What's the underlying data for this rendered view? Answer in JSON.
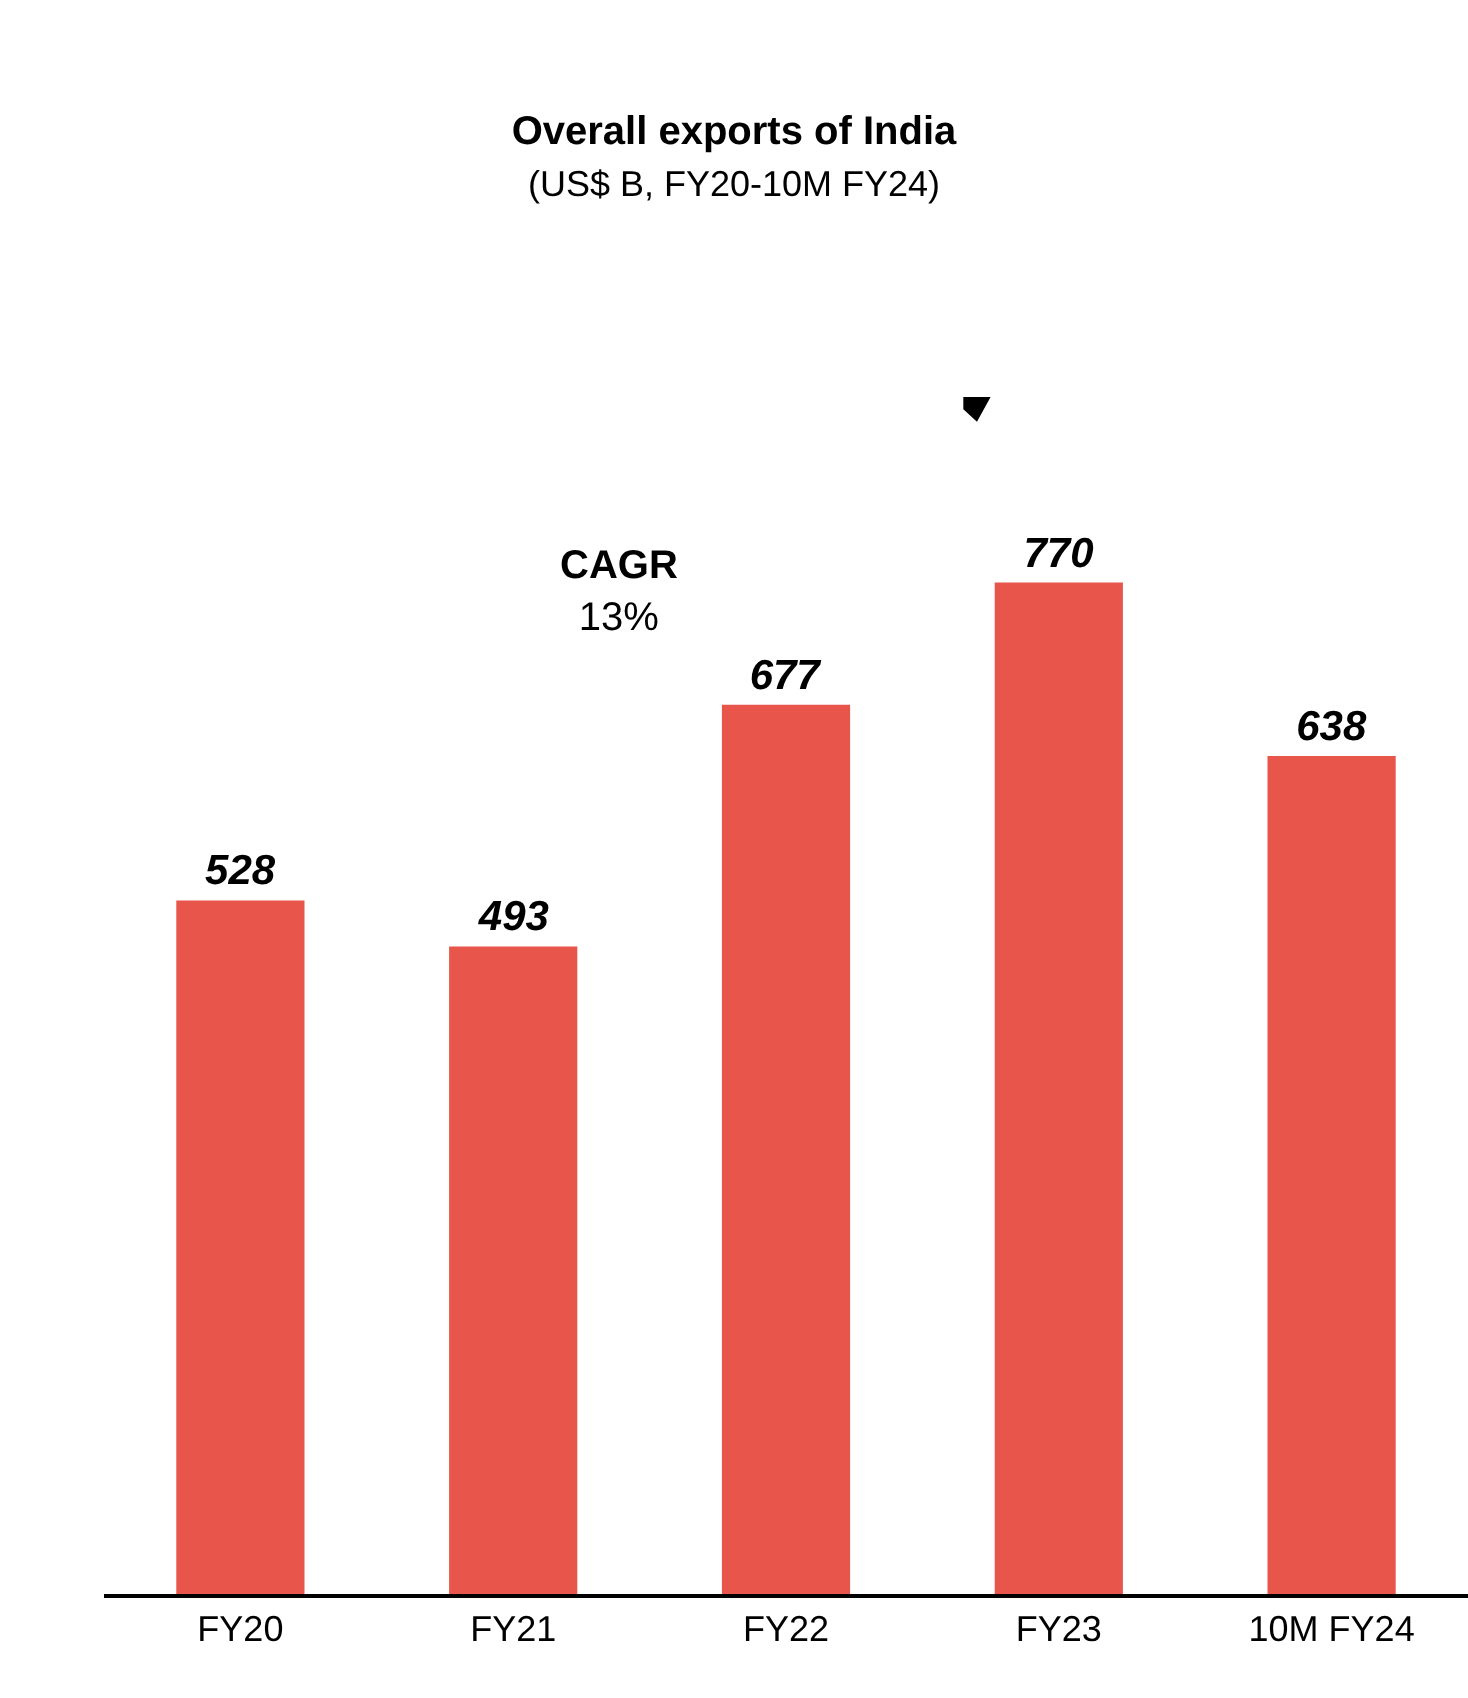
{
  "chart_data": {
    "type": "bar",
    "title": "Overall exports of India",
    "subtitle": "(US$ B, FY20-10M FY24)",
    "categories": [
      "FY20",
      "FY21",
      "FY22",
      "FY23",
      "10M FY24"
    ],
    "values": [
      528,
      493,
      677,
      770,
      638
    ],
    "color": "#e8564b",
    "tick_labels": "x",
    "data_labels": true,
    "annotations": [
      "CAGR\n13%"
    ]
  }
}
